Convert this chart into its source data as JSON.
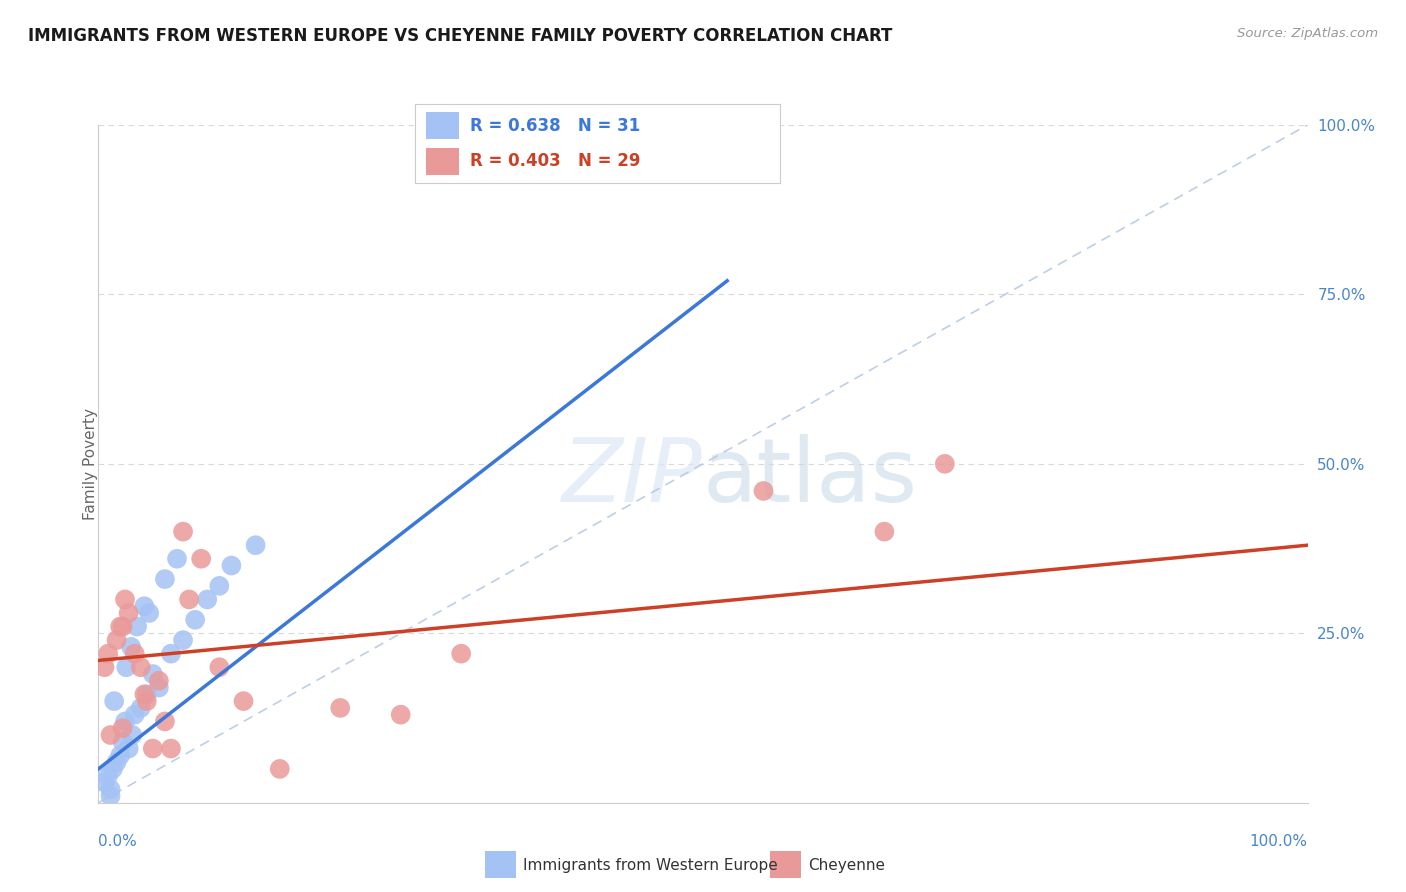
{
  "title": "IMMIGRANTS FROM WESTERN EUROPE VS CHEYENNE FAMILY POVERTY CORRELATION CHART",
  "source_text": "Source: ZipAtlas.com",
  "ylabel": "Family Poverty",
  "watermark_text": "ZIPatlas",
  "legend_blue_label": "Immigrants from Western Europe",
  "legend_pink_label": "Cheyenne",
  "R_blue": 0.638,
  "N_blue": 31,
  "R_pink": 0.403,
  "N_pink": 29,
  "blue_color": "#a4c2f4",
  "pink_color": "#ea9999",
  "blue_line_color": "#3c78d8",
  "pink_line_color": "#cc4125",
  "diag_line_color": "#b7c9e2",
  "grid_color": "#d9d9d9",
  "background_color": "#ffffff",
  "blue_line_x0": 0,
  "blue_line_y0": 5,
  "blue_line_x1": 52,
  "blue_line_y1": 77,
  "pink_line_x0": 0,
  "pink_line_y0": 21,
  "pink_line_x1": 100,
  "pink_line_y1": 38,
  "blue_scatter_x": [
    0.5,
    0.8,
    1.0,
    1.2,
    1.5,
    1.8,
    2.0,
    2.2,
    2.5,
    2.8,
    3.0,
    3.5,
    4.0,
    4.5,
    5.0,
    6.0,
    7.0,
    8.0,
    9.0,
    10.0,
    11.0,
    13.0,
    2.3,
    3.2,
    4.2,
    5.5,
    1.3,
    2.7,
    3.8,
    1.0,
    6.5
  ],
  "blue_scatter_y": [
    3,
    4,
    2,
    5,
    6,
    7,
    9,
    12,
    8,
    10,
    13,
    14,
    16,
    19,
    17,
    22,
    24,
    27,
    30,
    32,
    35,
    38,
    20,
    26,
    28,
    33,
    15,
    23,
    29,
    1,
    36
  ],
  "pink_scatter_x": [
    0.5,
    0.8,
    1.0,
    1.5,
    2.0,
    2.5,
    3.0,
    3.5,
    4.0,
    5.0,
    6.0,
    7.5,
    10.0,
    12.0,
    15.0,
    20.0,
    25.0,
    30.0,
    55.0,
    65.0,
    70.0,
    2.2,
    4.5,
    7.0,
    8.5,
    1.8,
    3.8,
    5.5,
    2.0
  ],
  "pink_scatter_y": [
    20,
    22,
    10,
    24,
    26,
    28,
    22,
    20,
    15,
    18,
    8,
    30,
    20,
    15,
    5,
    14,
    13,
    22,
    46,
    40,
    50,
    30,
    8,
    40,
    36,
    26,
    16,
    12,
    11
  ],
  "xlim": [
    0,
    100
  ],
  "ylim": [
    0,
    100
  ],
  "yticks": [
    25,
    50,
    75,
    100
  ],
  "ytick_labels": [
    "25.0%",
    "50.0%",
    "75.0%",
    "100.0%"
  ]
}
